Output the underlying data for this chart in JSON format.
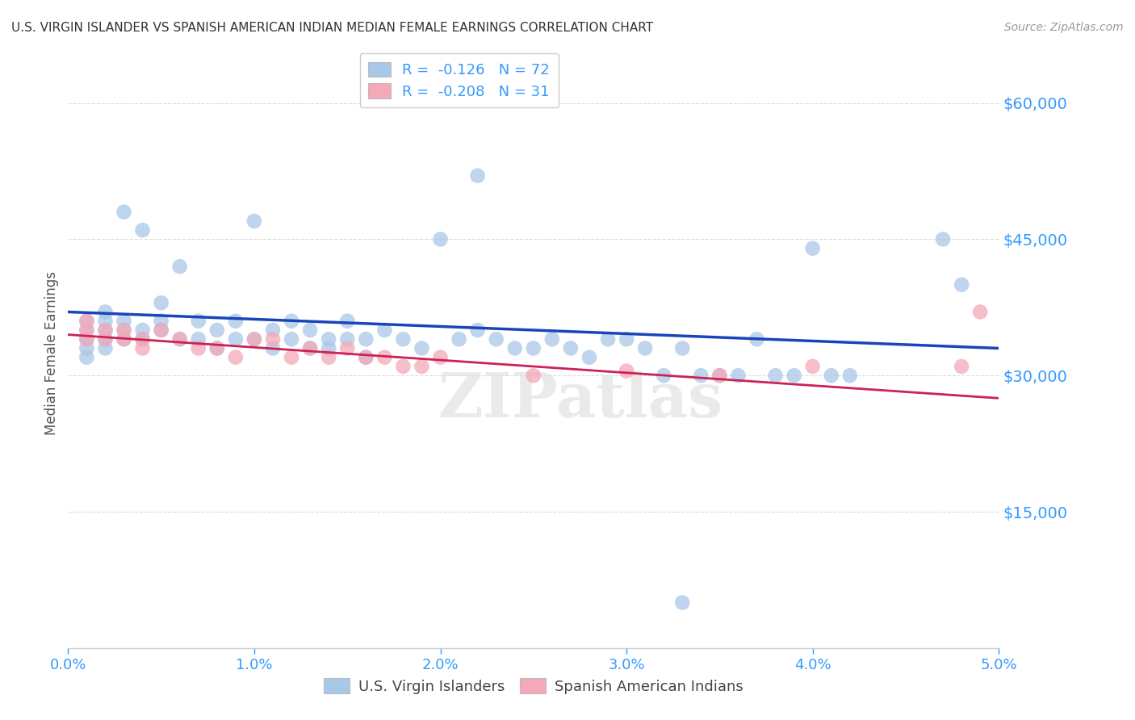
{
  "title": "U.S. VIRGIN ISLANDER VS SPANISH AMERICAN INDIAN MEDIAN FEMALE EARNINGS CORRELATION CHART",
  "source": "Source: ZipAtlas.com",
  "ylabel": "Median Female Earnings",
  "y_ticks": [
    0,
    15000,
    30000,
    45000,
    60000
  ],
  "y_tick_labels": [
    "",
    "$15,000",
    "$30,000",
    "$45,000",
    "$60,000"
  ],
  "x_min": 0.0,
  "x_max": 0.05,
  "y_min": 0,
  "y_max": 65000,
  "blue_R": "-0.126",
  "blue_N": "72",
  "pink_R": "-0.208",
  "pink_N": "31",
  "blue_label": "U.S. Virgin Islanders",
  "pink_label": "Spanish American Indians",
  "blue_color": "#a8c8e8",
  "pink_color": "#f4a8b8",
  "blue_line_color": "#1a44bb",
  "pink_line_color": "#cc2255",
  "background_color": "#ffffff",
  "grid_color": "#cccccc",
  "title_color": "#333333",
  "axis_label_color": "#3399ff",
  "watermark": "ZIPatlas",
  "blue_scatter_x": [
    0.001,
    0.001,
    0.001,
    0.001,
    0.001,
    0.002,
    0.002,
    0.002,
    0.002,
    0.002,
    0.003,
    0.003,
    0.003,
    0.003,
    0.004,
    0.004,
    0.004,
    0.005,
    0.005,
    0.005,
    0.006,
    0.006,
    0.007,
    0.007,
    0.008,
    0.008,
    0.009,
    0.009,
    0.01,
    0.01,
    0.011,
    0.011,
    0.012,
    0.012,
    0.013,
    0.013,
    0.014,
    0.014,
    0.015,
    0.015,
    0.016,
    0.016,
    0.017,
    0.018,
    0.019,
    0.02,
    0.021,
    0.022,
    0.023,
    0.024,
    0.025,
    0.026,
    0.027,
    0.028,
    0.029,
    0.03,
    0.031,
    0.032,
    0.033,
    0.034,
    0.035,
    0.036,
    0.037,
    0.038,
    0.039,
    0.04,
    0.041,
    0.042,
    0.047,
    0.048,
    0.022,
    0.033
  ],
  "blue_scatter_y": [
    36000,
    35000,
    34000,
    33000,
    32000,
    37000,
    36000,
    35000,
    34000,
    33000,
    48000,
    36000,
    35000,
    34000,
    46000,
    35000,
    34000,
    38000,
    36000,
    35000,
    42000,
    34000,
    36000,
    34000,
    35000,
    33000,
    36000,
    34000,
    47000,
    34000,
    35000,
    33000,
    36000,
    34000,
    35000,
    33000,
    34000,
    33000,
    36000,
    34000,
    34000,
    32000,
    35000,
    34000,
    33000,
    45000,
    34000,
    35000,
    34000,
    33000,
    33000,
    34000,
    33000,
    32000,
    34000,
    34000,
    33000,
    30000,
    33000,
    30000,
    30000,
    30000,
    34000,
    30000,
    30000,
    44000,
    30000,
    30000,
    45000,
    40000,
    52000,
    5000
  ],
  "pink_scatter_x": [
    0.001,
    0.001,
    0.001,
    0.002,
    0.002,
    0.003,
    0.003,
    0.004,
    0.004,
    0.005,
    0.006,
    0.007,
    0.008,
    0.009,
    0.01,
    0.011,
    0.012,
    0.013,
    0.014,
    0.015,
    0.016,
    0.017,
    0.018,
    0.019,
    0.02,
    0.025,
    0.03,
    0.035,
    0.04,
    0.048,
    0.049
  ],
  "pink_scatter_y": [
    36000,
    35000,
    34000,
    35000,
    34000,
    35000,
    34000,
    34000,
    33000,
    35000,
    34000,
    33000,
    33000,
    32000,
    34000,
    34000,
    32000,
    33000,
    32000,
    33000,
    32000,
    32000,
    31000,
    31000,
    32000,
    30000,
    30500,
    30000,
    31000,
    31000,
    37000
  ],
  "blue_trend_x": [
    0.0,
    0.05
  ],
  "blue_trend_y": [
    37000,
    33000
  ],
  "pink_trend_x": [
    0.0,
    0.05
  ],
  "pink_trend_y": [
    34500,
    27500
  ]
}
